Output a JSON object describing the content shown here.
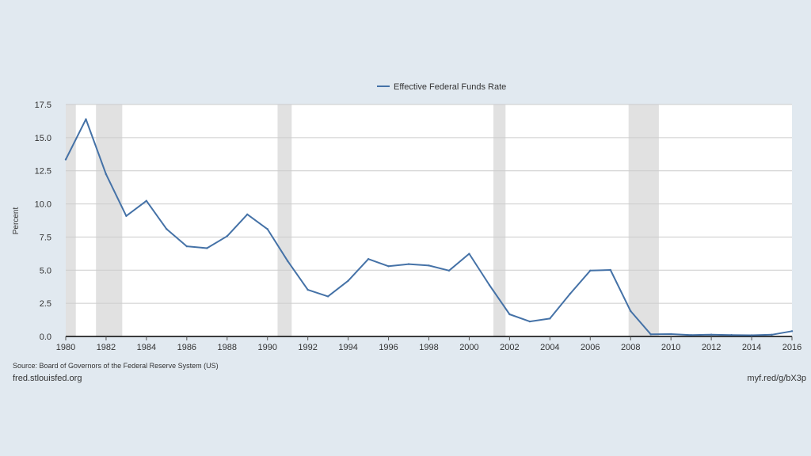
{
  "chart_data": {
    "type": "line",
    "title": "",
    "xlabel": "",
    "ylabel": "Percent",
    "xlim": [
      1980,
      2016
    ],
    "ylim": [
      0,
      17.5
    ],
    "grid": true,
    "legend_position": "top-center",
    "line_color": "#4572a7",
    "shading_color": "#e1e1e1",
    "y_ticks": [
      "0.0",
      "2.5",
      "5.0",
      "7.5",
      "10.0",
      "12.5",
      "15.0",
      "17.5"
    ],
    "x_ticks": [
      "1980",
      "1982",
      "1984",
      "1986",
      "1988",
      "1990",
      "1992",
      "1994",
      "1996",
      "1998",
      "2000",
      "2002",
      "2004",
      "2006",
      "2008",
      "2010",
      "2012",
      "2014",
      "2016"
    ],
    "recessions": [
      [
        1980.0,
        1980.5
      ],
      [
        1981.5,
        1982.8
      ],
      [
        1990.5,
        1991.2
      ],
      [
        2001.2,
        2001.8
      ],
      [
        2007.9,
        2009.4
      ]
    ],
    "series": [
      {
        "name": "Effective Federal Funds Rate",
        "x": [
          1980,
          1981,
          1982,
          1983,
          1984,
          1985,
          1986,
          1987,
          1988,
          1989,
          1990,
          1991,
          1992,
          1993,
          1994,
          1995,
          1996,
          1997,
          1998,
          1999,
          2000,
          2001,
          2002,
          2003,
          2004,
          2005,
          2006,
          2007,
          2008,
          2009,
          2010,
          2011,
          2012,
          2013,
          2014,
          2015,
          2016
        ],
        "values": [
          13.35,
          16.39,
          12.24,
          9.09,
          10.23,
          8.1,
          6.8,
          6.66,
          7.57,
          9.21,
          8.1,
          5.69,
          3.52,
          3.02,
          4.2,
          5.84,
          5.3,
          5.46,
          5.35,
          4.97,
          6.24,
          3.88,
          1.67,
          1.13,
          1.35,
          3.22,
          4.97,
          5.02,
          1.92,
          0.16,
          0.18,
          0.1,
          0.14,
          0.11,
          0.09,
          0.13,
          0.4
        ]
      }
    ]
  },
  "footer": {
    "source": "Source: Board of Governors of the Federal Reserve System (US)",
    "site": "fred.stlouisfed.org",
    "short_url": "myf.red/g/bX3p"
  }
}
